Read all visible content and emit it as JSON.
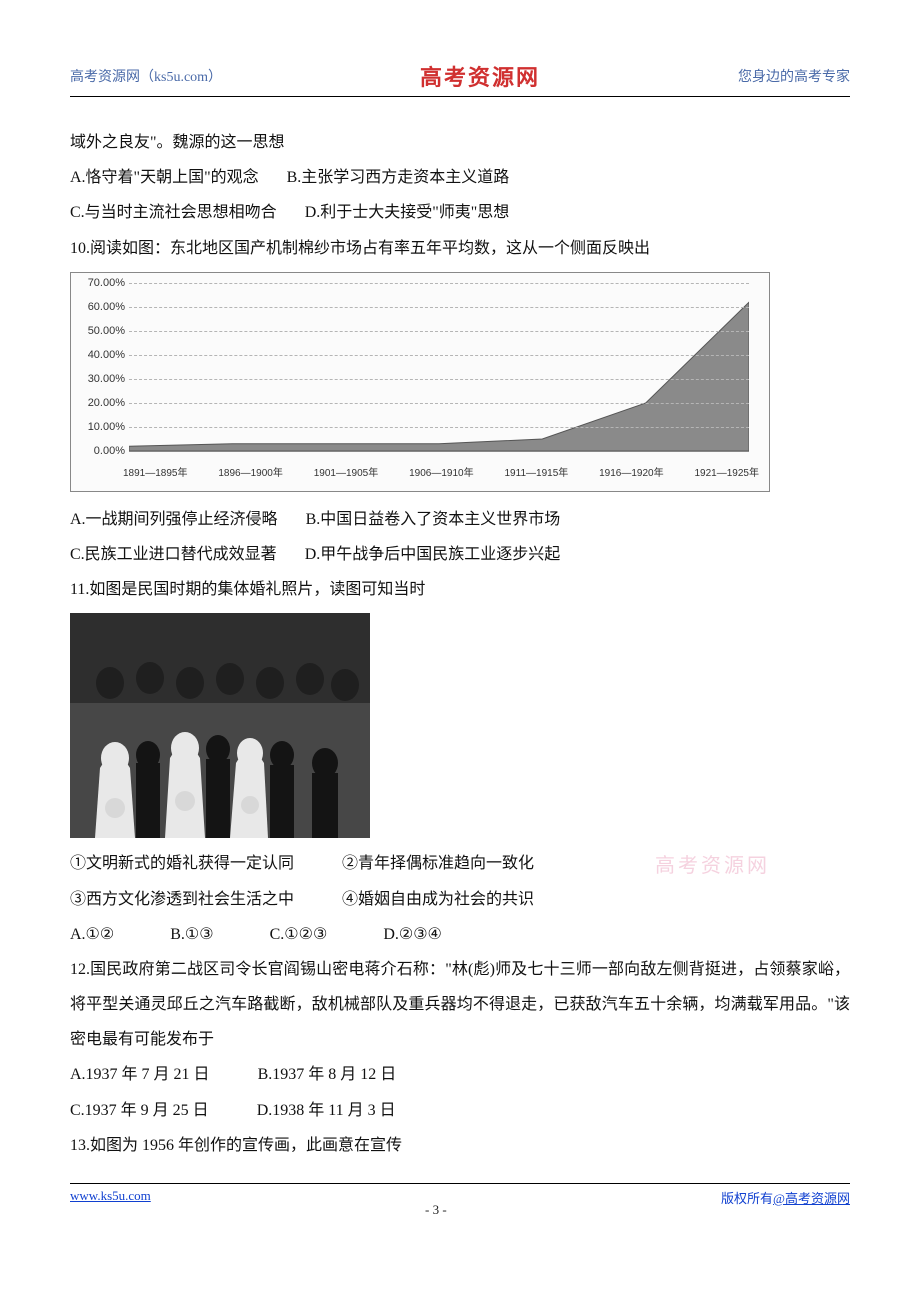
{
  "header": {
    "left": "高考资源网（ks5u.com）",
    "center": "高考资源网",
    "right": "您身边的高考专家"
  },
  "watermark": "高考资源网",
  "q9": {
    "cont": "域外之良友\"。魏源的这一思想",
    "A": "A.恪守着\"天朝上国\"的观念",
    "B": "B.主张学习西方走资本主义道路",
    "C": "C.与当时主流社会思想相吻合",
    "D": "D.利于士大夫接受\"师夷\"思想"
  },
  "q10": {
    "stem": "10.阅读如图：东北地区国产机制棉纱市场占有率五年平均数，这从一个侧面反映出",
    "chart": {
      "type": "area",
      "categories": [
        "1891—1895年",
        "1896—1900年",
        "1901—1905年",
        "1906—1910年",
        "1911—1915年",
        "1916—1920年",
        "1921—1925年"
      ],
      "values": [
        2,
        3,
        3,
        3,
        5,
        20,
        62
      ],
      "ylim": [
        0,
        70
      ],
      "ytick_step": 10,
      "y_tick_labels": [
        "0.00%",
        "10.00%",
        "20.00%",
        "30.00%",
        "40.00%",
        "50.00%",
        "60.00%",
        "70.00%"
      ],
      "line_color": "#555555",
      "fill_color": "#8a8a8a",
      "grid_color": "#b5b5b5",
      "background_color": "#fbfbfb",
      "label_fontsize": 11
    },
    "A": "A.一战期间列强停止经济侵略",
    "B": "B.中国日益卷入了资本主义世界市场",
    "C": "C.民族工业进口替代成效显著",
    "D": "D.甲午战争后中国民族工业逐步兴起"
  },
  "q11": {
    "stem": "11.如图是民国时期的集体婚礼照片，读图可知当时",
    "s1": "①文明新式的婚礼获得一定认同",
    "s2": "②青年择偶标准趋向一致化",
    "s3": "③西方文化渗透到社会生活之中",
    "s4": "④婚姻自由成为社会的共识",
    "A": "A.①②",
    "B": "B.①③",
    "C": "C.①②③",
    "D": "D.②③④"
  },
  "q12": {
    "stem": "12.国民政府第二战区司令长官阎锡山密电蒋介石称：\"林(彪)师及七十三师一部向敌左侧背挺进，占领蔡家峪，将平型关通灵邱丘之汽车路截断，敌机械部队及重兵器均不得退走，已获敌汽车五十余辆，均满载军用品。\"该密电最有可能发布于",
    "A": "A.1937 年 7 月 21 日",
    "B": "B.1937 年 8 月 12 日",
    "C": "C.1937 年 9 月 25 日",
    "D": "D.1938 年 11 月 3 日"
  },
  "q13": {
    "stem": "13.如图为 1956 年创作的宣传画，此画意在宣传"
  },
  "footer": {
    "left": "www.ks5u.com",
    "center": "- 3 -",
    "right_prefix": "版权所有",
    "right_at": "@高考资源网"
  }
}
